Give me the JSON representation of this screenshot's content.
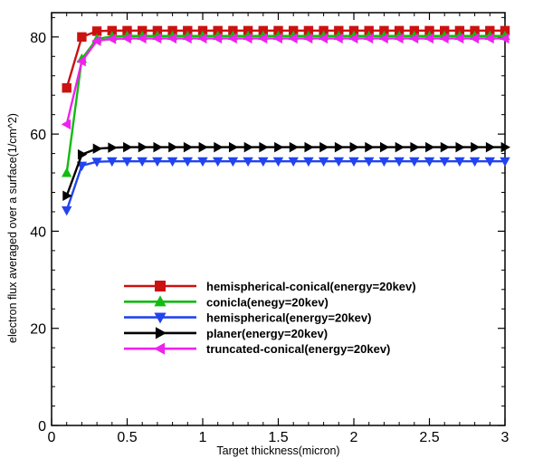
{
  "chart_data": {
    "type": "line",
    "title": "",
    "xlabel": "Target thickness(micron)",
    "ylabel": "electron flux averaged over a surface(1/cm^2)",
    "xlim": [
      0,
      3
    ],
    "ylim": [
      0,
      85
    ],
    "xticks": [
      0,
      0.5,
      1,
      1.5,
      2,
      2.5,
      3
    ],
    "xtick_labels": [
      "0",
      "0.5",
      "1",
      "1.5",
      "2",
      "2.5",
      "3"
    ],
    "yticks": [
      0,
      20,
      40,
      60,
      80
    ],
    "ytick_labels": [
      "0",
      "20",
      "40",
      "60",
      "80"
    ],
    "grid": false,
    "legend_position": "center",
    "x": [
      0.1,
      0.2,
      0.3,
      0.4,
      0.5,
      0.6,
      0.7,
      0.8,
      0.9,
      1.0,
      1.1,
      1.2,
      1.3,
      1.4,
      1.5,
      1.6,
      1.7,
      1.8,
      1.9,
      2.0,
      2.1,
      2.2,
      2.3,
      2.4,
      2.5,
      2.6,
      2.7,
      2.8,
      2.9,
      3.0
    ],
    "series": [
      {
        "name": "hemispherical-conical(energy=20kev)",
        "color": "#cc1111",
        "marker": "square",
        "values": [
          69.5,
          80.0,
          81.2,
          81.3,
          81.3,
          81.3,
          81.3,
          81.3,
          81.3,
          81.3,
          81.3,
          81.3,
          81.3,
          81.3,
          81.3,
          81.3,
          81.3,
          81.3,
          81.3,
          81.3,
          81.3,
          81.3,
          81.3,
          81.3,
          81.3,
          81.3,
          81.3,
          81.3,
          81.3,
          81.3
        ]
      },
      {
        "name": "conicla(enegy=20kev)",
        "color": "#11bb11",
        "marker": "triangle-up",
        "values": [
          52.0,
          75.5,
          79.6,
          80.1,
          80.2,
          80.2,
          80.2,
          80.2,
          80.2,
          80.2,
          80.2,
          80.2,
          80.2,
          80.2,
          80.2,
          80.2,
          80.2,
          80.2,
          80.2,
          80.2,
          80.2,
          80.2,
          80.2,
          80.2,
          80.2,
          80.2,
          80.2,
          80.2,
          80.2,
          80.2
        ]
      },
      {
        "name": "hemispherical(energy=20kev)",
        "color": "#2244ee",
        "marker": "triangle-down",
        "values": [
          44.3,
          53.5,
          54.3,
          54.4,
          54.4,
          54.4,
          54.4,
          54.4,
          54.4,
          54.4,
          54.4,
          54.4,
          54.4,
          54.4,
          54.4,
          54.4,
          54.4,
          54.4,
          54.4,
          54.4,
          54.4,
          54.4,
          54.4,
          54.4,
          54.4,
          54.4,
          54.4,
          54.4,
          54.4,
          54.4
        ]
      },
      {
        "name": "planer(energy=20kev)",
        "color": "#000000",
        "marker": "triangle-right",
        "values": [
          47.3,
          55.8,
          57.0,
          57.2,
          57.3,
          57.3,
          57.3,
          57.3,
          57.3,
          57.3,
          57.3,
          57.3,
          57.3,
          57.3,
          57.3,
          57.3,
          57.3,
          57.3,
          57.3,
          57.3,
          57.3,
          57.3,
          57.3,
          57.3,
          57.3,
          57.3,
          57.3,
          57.3,
          57.3,
          57.3
        ]
      },
      {
        "name": "truncated-conical(energy=20kev)",
        "color": "#ee22ee",
        "marker": "triangle-left",
        "values": [
          62.0,
          75.0,
          79.2,
          79.6,
          79.7,
          79.7,
          79.7,
          79.7,
          79.7,
          79.7,
          79.7,
          79.7,
          79.7,
          79.7,
          79.7,
          79.7,
          79.7,
          79.7,
          79.7,
          79.7,
          79.7,
          79.7,
          79.7,
          79.7,
          79.7,
          79.7,
          79.7,
          79.7,
          79.7,
          79.7
        ]
      }
    ]
  }
}
